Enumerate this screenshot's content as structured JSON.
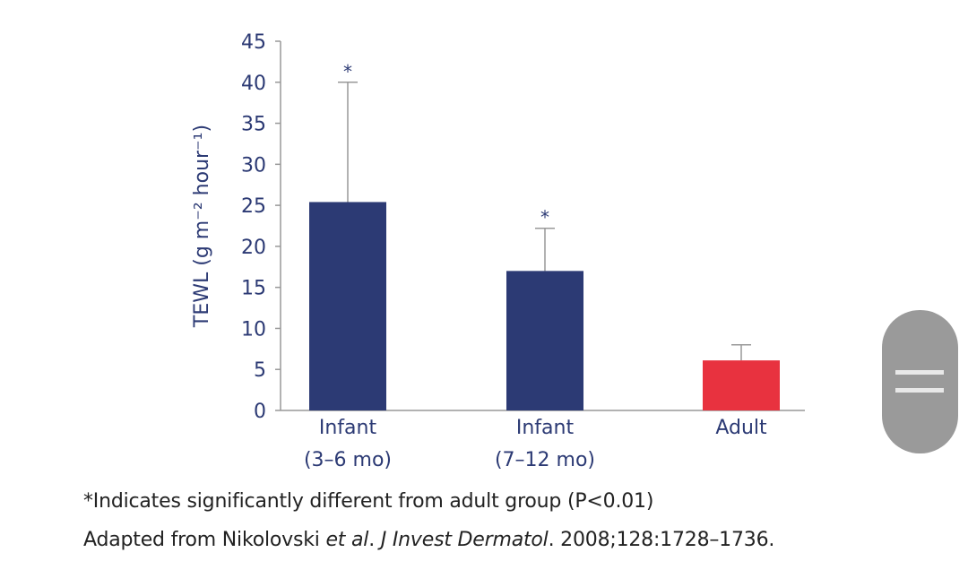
{
  "chart_data": {
    "type": "bar",
    "title": "",
    "xlabel": "",
    "ylabel": "TEWL (g m⁻² hour⁻¹)",
    "ylim": [
      0,
      45
    ],
    "yticks": [
      0,
      5,
      10,
      15,
      20,
      25,
      30,
      35,
      40,
      45
    ],
    "grid": false,
    "categories": [
      {
        "line1": "Infant",
        "line2": "(3–6 mo)"
      },
      {
        "line1": "Infant",
        "line2": "(7–12 mo)"
      },
      {
        "line1": "Adult",
        "line2": ""
      }
    ],
    "values": [
      25.4,
      17.0,
      6.1
    ],
    "error_upper": [
      40.0,
      22.2,
      8.0
    ],
    "significance": [
      "*",
      "*",
      ""
    ],
    "colors": [
      "#2c3a74",
      "#2c3a74",
      "#e8323f"
    ],
    "axis_color": "#999999",
    "text_color": "#2c3a74"
  },
  "footnotes": {
    "significance_note": "*Indicates significantly different from adult group (P<0.01)",
    "source_prefix": "Adapted from Nikolovski ",
    "source_etal": "et al",
    "source_dot": ". ",
    "source_journal": "J Invest Dermatol",
    "source_suffix": ". 2008;128:1728–1736."
  }
}
